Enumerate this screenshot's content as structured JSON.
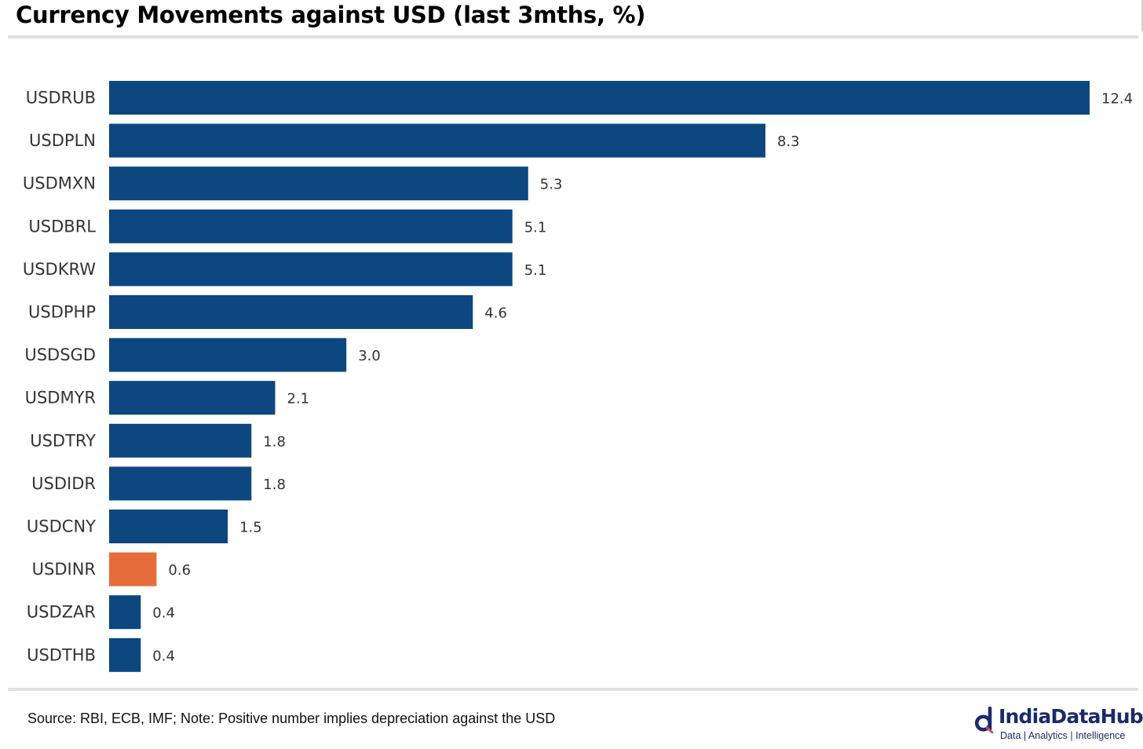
{
  "chart_data": {
    "type": "bar",
    "orientation": "horizontal",
    "title": "Currency Movements against USD (last 3mths, %)",
    "categories": [
      "USDRUB",
      "USDPLN",
      "USDMXN",
      "USDBRL",
      "USDKRW",
      "USDPHP",
      "USDSGD",
      "USDMYR",
      "USDTRY",
      "USDIDR",
      "USDCNY",
      "USDINR",
      "USDZAR",
      "USDTHB"
    ],
    "values": [
      12.4,
      8.3,
      5.3,
      5.1,
      5.1,
      4.6,
      3.0,
      2.1,
      1.8,
      1.8,
      1.5,
      0.6,
      0.4,
      0.4
    ],
    "value_labels": [
      "12.4",
      "8.3",
      "5.3",
      "5.1",
      "5.1",
      "4.6",
      "3.0",
      "2.1",
      "1.8",
      "1.8",
      "1.5",
      "0.6",
      "0.4",
      "0.4"
    ],
    "xlim": [
      0,
      12.4
    ],
    "grid": false,
    "bar_color": "#0c477f",
    "highlight_category": "USDINR",
    "highlight_color": "#e76c3b"
  },
  "source_note": "Source: RBI, ECB, IMF; Note: Positive number implies depreciation against the USD",
  "logo": {
    "name": "IndiaDataHub",
    "tagline": "Data | Analytics | Intelligence",
    "color": "#1a2a6c"
  }
}
